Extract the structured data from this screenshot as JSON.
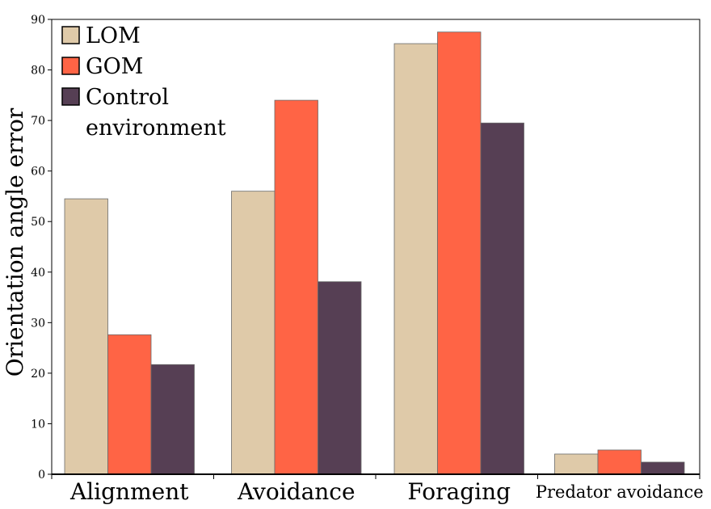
{
  "chart_data": {
    "type": "bar",
    "title": "",
    "xlabel": "",
    "ylabel": "Orientation angle error",
    "ylim": [
      0,
      90
    ],
    "ytick_step": 10,
    "grid": false,
    "legend_position": "top-left",
    "categories": [
      "Alignment",
      "Avoidance",
      "Foraging",
      "Predator avoidance"
    ],
    "series": [
      {
        "name": "LOM",
        "color": "#DFCAA9",
        "values": [
          54.5,
          56,
          85.2,
          4
        ]
      },
      {
        "name": "GOM",
        "color": "#FF6445",
        "values": [
          27.6,
          74,
          87.5,
          4.8
        ]
      },
      {
        "name": "Control environment",
        "legend_lines": [
          "Control",
          "environment"
        ],
        "color": "#563F54",
        "values": [
          21.7,
          38.1,
          69.5,
          2.4
        ]
      }
    ]
  }
}
